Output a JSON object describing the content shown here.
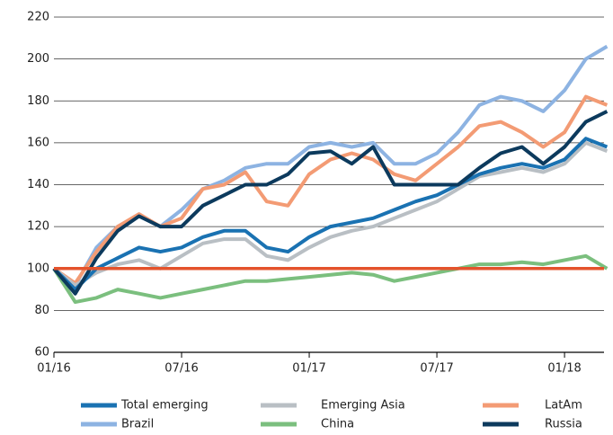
{
  "chart_data": {
    "type": "line",
    "categories": [
      "01/16",
      null,
      null,
      null,
      null,
      null,
      "07/16",
      null,
      null,
      null,
      null,
      null,
      "01/17",
      null,
      null,
      null,
      null,
      null,
      "07/17",
      null,
      null,
      null,
      null,
      null,
      "01/18",
      null,
      null
    ],
    "series": [
      {
        "name": "Brazil",
        "color": "#8db3e2",
        "values": [
          100,
          92,
          110,
          120,
          125,
          120,
          128,
          138,
          142,
          148,
          150,
          150,
          158,
          160,
          158,
          160,
          150,
          150,
          155,
          165,
          178,
          182,
          180,
          175,
          185,
          200,
          206
        ]
      },
      {
        "name": "LatAm",
        "color": "#f39b74",
        "values": [
          100,
          93,
          108,
          120,
          126,
          120,
          124,
          138,
          140,
          146,
          132,
          130,
          145,
          152,
          155,
          152,
          145,
          142,
          150,
          158,
          168,
          170,
          165,
          158,
          165,
          182,
          178
        ]
      },
      {
        "name": "Emerging Asia",
        "color": "#b9bfc4",
        "values": [
          100,
          92,
          98,
          102,
          104,
          100,
          106,
          112,
          114,
          114,
          106,
          104,
          110,
          115,
          118,
          120,
          124,
          128,
          132,
          138,
          144,
          146,
          148,
          146,
          150,
          160,
          156
        ]
      },
      {
        "name": "Total emerging",
        "color": "#1a72b2",
        "values": [
          100,
          90,
          100,
          105,
          110,
          108,
          110,
          115,
          118,
          118,
          110,
          108,
          115,
          120,
          122,
          124,
          128,
          132,
          135,
          140,
          145,
          148,
          150,
          148,
          152,
          162,
          158
        ]
      },
      {
        "name": "China",
        "color": "#7bbf7e",
        "values": [
          100,
          84,
          86,
          90,
          88,
          86,
          88,
          90,
          92,
          94,
          94,
          95,
          96,
          97,
          98,
          97,
          94,
          96,
          98,
          100,
          102,
          102,
          103,
          102,
          104,
          106,
          100
        ]
      },
      {
        "name": "Russia",
        "color": "#0c3a5d",
        "values": [
          100,
          88,
          105,
          118,
          125,
          120,
          120,
          130,
          135,
          140,
          140,
          145,
          155,
          156,
          150,
          158,
          140,
          140,
          140,
          140,
          148,
          155,
          158,
          150,
          158,
          170,
          175
        ]
      }
    ],
    "legend_order": [
      3,
      2,
      1,
      0,
      4,
      5
    ],
    "reference_line": 100,
    "reference_color": "#e4532c",
    "ylim": [
      60,
      220
    ],
    "yticks": [
      60,
      80,
      100,
      120,
      140,
      160,
      180,
      200,
      220
    ],
    "grid": true
  }
}
